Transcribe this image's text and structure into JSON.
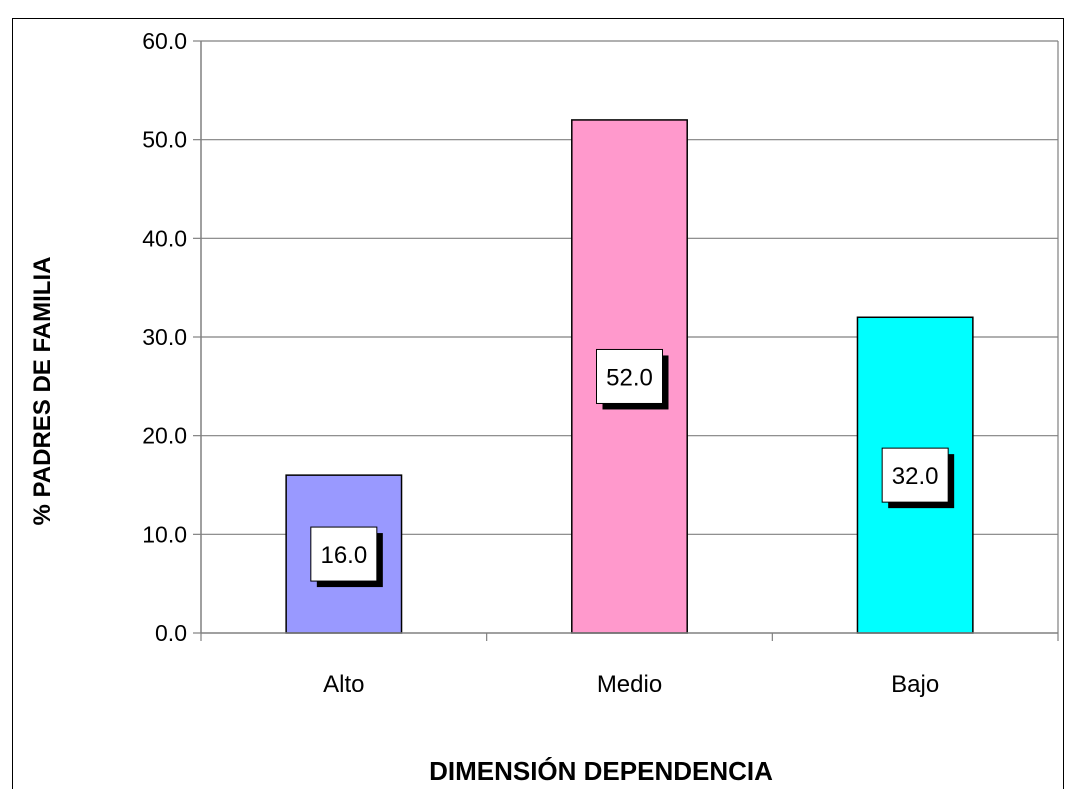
{
  "chart_data": {
    "type": "bar",
    "categories": [
      "Alto",
      "Medio",
      "Bajo"
    ],
    "values": [
      16.0,
      52.0,
      32.0
    ],
    "data_labels": [
      "16.0",
      "52.0",
      "32.0"
    ],
    "bar_colors": [
      "#9999FF",
      "#FF99CC",
      "#00FFFF"
    ],
    "xlabel": "DIMENSIÓN DEPENDENCIA",
    "ylabel": "% PADRES DE FAMILIA",
    "ylim": [
      0,
      60
    ],
    "yticks": [
      0,
      10,
      20,
      30,
      40,
      50,
      60
    ],
    "ytick_labels": [
      "0.0",
      "10.0",
      "20.0",
      "30.0",
      "40.0",
      "50.0",
      "60.0"
    ],
    "grid": true,
    "gridline_color": "#808080",
    "plot_border_color": "#808080",
    "legend": "none"
  }
}
